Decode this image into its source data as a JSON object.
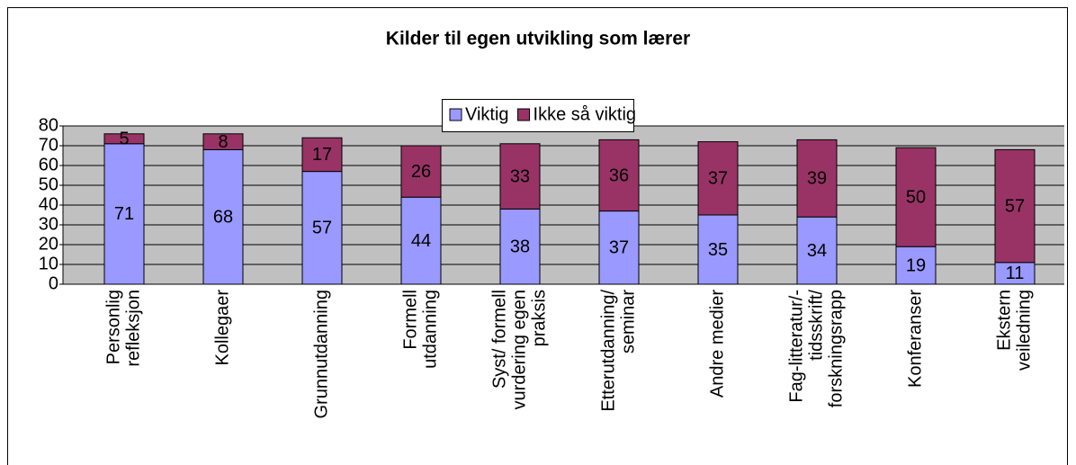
{
  "chart_data": {
    "type": "stacked-bar",
    "title": "Kilder til egen utvikling som lærer",
    "categories": [
      [
        "Personlig",
        "refleksjon"
      ],
      [
        "Kollegaer"
      ],
      [
        "Grunnutdanning"
      ],
      [
        "Formell",
        "utdanning"
      ],
      [
        "Syst/ formell",
        "vurdering egen",
        "praksis"
      ],
      [
        "Etterutdanning/",
        "seminar"
      ],
      [
        "Andre medier"
      ],
      [
        "Fag-litteratur/-",
        "tidsskrift/",
        "forskningsrapp"
      ],
      [
        "Konferanser"
      ],
      [
        "Ekstern",
        "veiledning"
      ]
    ],
    "series": [
      {
        "name": "Viktig",
        "color": "#9999ff",
        "values": [
          71,
          68,
          57,
          44,
          38,
          37,
          35,
          34,
          19,
          11
        ]
      },
      {
        "name": "Ikke så viktig",
        "color": "#993366",
        "values": [
          5,
          8,
          17,
          26,
          33,
          36,
          37,
          39,
          50,
          57
        ]
      }
    ],
    "ylim": [
      0,
      80
    ],
    "yticks": [
      0,
      10,
      20,
      30,
      40,
      50,
      60,
      70,
      80
    ],
    "grid": true,
    "legend": "top"
  }
}
